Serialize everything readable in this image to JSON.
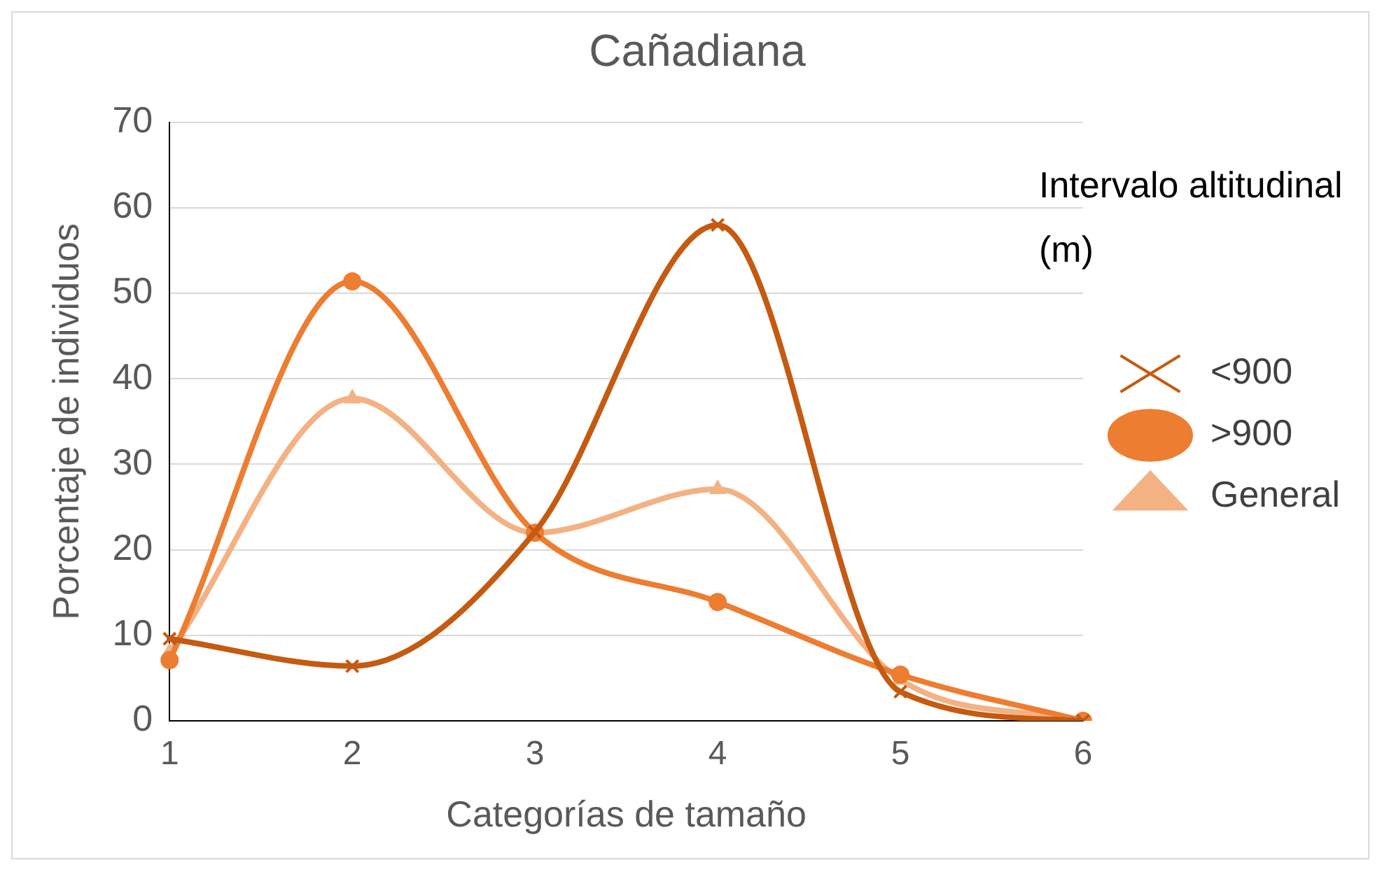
{
  "chart_data": {
    "type": "line",
    "title": "Cañadiana",
    "xlabel": "Categorías de tamaño",
    "ylabel": "Porcentaje de individuos",
    "legend_title": "Intervalo altitudinal (m)",
    "legend": "right",
    "grid": "y",
    "ylim": [
      0,
      70
    ],
    "yticks": [
      0,
      10,
      20,
      30,
      40,
      50,
      60,
      70
    ],
    "categories": [
      "1",
      "2",
      "3",
      "4",
      "5",
      "6"
    ],
    "series": [
      {
        "name": "<900",
        "color": "#c55a11",
        "marker": "cross",
        "values": [
          9.6,
          6.4,
          22.1,
          58,
          3.4,
          0
        ]
      },
      {
        "name": ">900",
        "color": "#ed7d31",
        "marker": "circle",
        "values": [
          7.1,
          51.4,
          22,
          13.9,
          5.4,
          0
        ]
      },
      {
        "name": "General",
        "color": "#f4b183",
        "marker": "triangle",
        "values": [
          8,
          37.7,
          22,
          27.1,
          4.8,
          0
        ]
      }
    ]
  }
}
